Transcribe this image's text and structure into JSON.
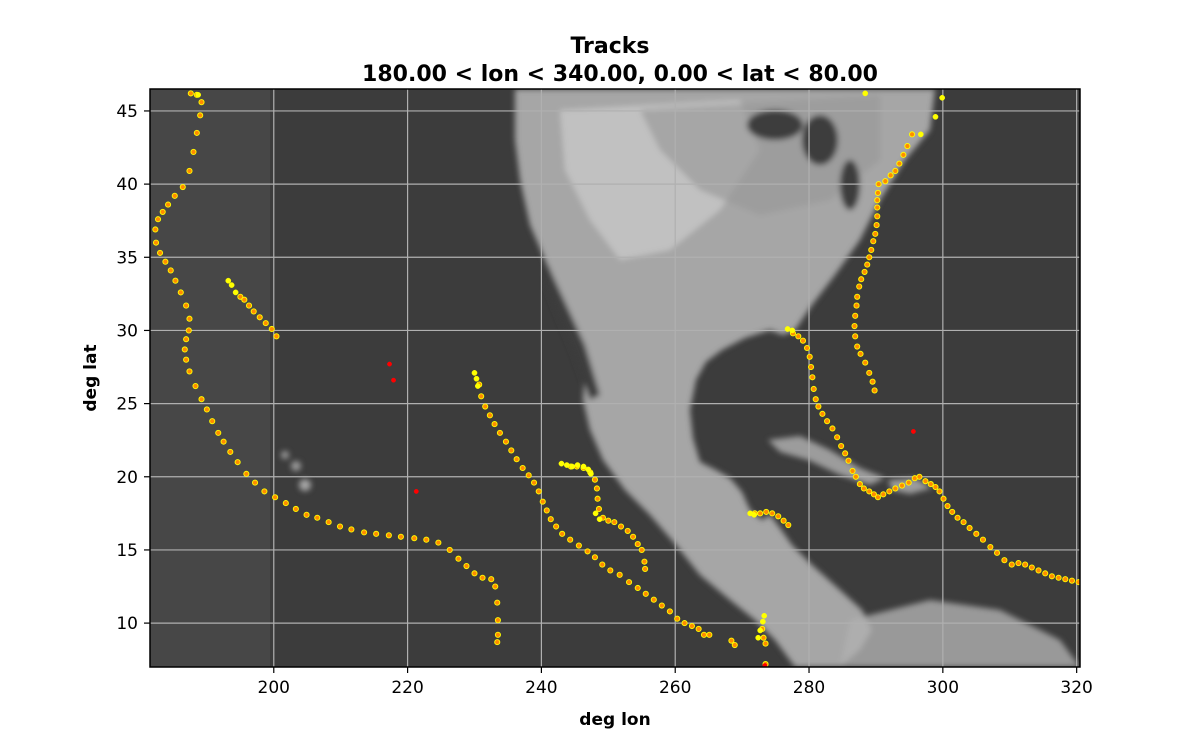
{
  "chart_data": {
    "type": "scatter",
    "title": "Tracks",
    "subtitle": "180.00 < lon < 340.00, 0.00 < lat < 80.00",
    "xlabel": "deg lon",
    "ylabel": "deg lat",
    "xlim": [
      181.5,
      320.5
    ],
    "ylim": [
      7.0,
      46.5
    ],
    "xticks": [
      200,
      220,
      240,
      260,
      280,
      300,
      320
    ],
    "yticks": [
      10,
      15,
      20,
      25,
      30,
      35,
      40,
      45
    ],
    "grid": true,
    "background": "grayscale satellite imagery of North America, Central America and the Caribbean",
    "colors": {
      "point_fill": "#ff8c00",
      "point_edge": "#ffff00",
      "red_point": "#ff0000",
      "yellow_point": "#ffff00",
      "plot_bg": "#3c3c3c",
      "grid": "#b0b0b0"
    },
    "series": [
      {
        "color": "orange",
        "points": [
          [
            187.6,
            46.2
          ],
          [
            188.5,
            46.1
          ],
          [
            189.2,
            45.6
          ],
          [
            189.0,
            44.7
          ],
          [
            188.5,
            43.5
          ],
          [
            188.0,
            42.2
          ],
          [
            187.4,
            40.9
          ],
          [
            186.4,
            39.8
          ],
          [
            185.2,
            39.2
          ],
          [
            184.2,
            38.6
          ],
          [
            183.4,
            38.1
          ],
          [
            182.7,
            37.6
          ],
          [
            182.3,
            36.9
          ],
          [
            182.4,
            36.0
          ],
          [
            183.0,
            35.3
          ],
          [
            183.8,
            34.7
          ],
          [
            184.6,
            34.1
          ],
          [
            185.3,
            33.4
          ],
          [
            186.1,
            32.6
          ],
          [
            186.9,
            31.7
          ],
          [
            187.4,
            30.8
          ],
          [
            187.3,
            30.0
          ],
          [
            186.9,
            29.4
          ],
          [
            186.7,
            28.7
          ],
          [
            186.9,
            28.0
          ],
          [
            187.4,
            27.2
          ],
          [
            188.3,
            26.2
          ],
          [
            189.2,
            25.3
          ],
          [
            190.0,
            24.6
          ],
          [
            190.8,
            23.8
          ],
          [
            191.7,
            23.0
          ],
          [
            192.5,
            22.4
          ],
          [
            193.5,
            21.7
          ],
          [
            194.6,
            21.0
          ],
          [
            195.9,
            20.2
          ],
          [
            197.2,
            19.6
          ],
          [
            198.6,
            19.0
          ],
          [
            200.2,
            18.6
          ],
          [
            201.8,
            18.2
          ],
          [
            203.3,
            17.8
          ],
          [
            204.9,
            17.4
          ],
          [
            206.5,
            17.2
          ],
          [
            208.2,
            16.9
          ],
          [
            209.9,
            16.6
          ],
          [
            211.6,
            16.4
          ],
          [
            213.5,
            16.2
          ],
          [
            215.3,
            16.1
          ],
          [
            217.2,
            16.0
          ],
          [
            219.0,
            15.9
          ],
          [
            221.0,
            15.8
          ],
          [
            222.8,
            15.7
          ],
          [
            224.6,
            15.5
          ],
          [
            226.3,
            15.0
          ],
          [
            227.6,
            14.4
          ],
          [
            228.8,
            13.9
          ],
          [
            230.0,
            13.4
          ],
          [
            231.2,
            13.1
          ],
          [
            232.5,
            13.0
          ],
          [
            233.1,
            12.5
          ],
          [
            233.4,
            11.4
          ],
          [
            233.5,
            10.2
          ],
          [
            233.5,
            9.2
          ],
          [
            233.4,
            8.7
          ]
        ]
      },
      {
        "color": "orange",
        "points": [
          [
            195.0,
            32.3
          ],
          [
            195.6,
            32.1
          ],
          [
            196.3,
            31.7
          ],
          [
            197.0,
            31.3
          ],
          [
            197.9,
            30.9
          ],
          [
            198.8,
            30.5
          ],
          [
            199.7,
            30.1
          ],
          [
            200.4,
            29.6
          ]
        ]
      },
      {
        "color": "orange",
        "points": [
          [
            230.7,
            26.3
          ],
          [
            231.0,
            25.5
          ],
          [
            231.6,
            24.8
          ],
          [
            232.3,
            24.2
          ],
          [
            233.0,
            23.6
          ],
          [
            233.8,
            23.0
          ],
          [
            234.7,
            22.4
          ],
          [
            235.5,
            21.8
          ],
          [
            236.3,
            21.2
          ],
          [
            237.2,
            20.6
          ],
          [
            238.1,
            20.1
          ],
          [
            238.9,
            19.6
          ],
          [
            239.6,
            19.0
          ],
          [
            240.2,
            18.3
          ],
          [
            240.8,
            17.7
          ],
          [
            241.4,
            17.1
          ],
          [
            242.2,
            16.6
          ],
          [
            243.1,
            16.1
          ],
          [
            244.3,
            15.7
          ],
          [
            245.6,
            15.3
          ],
          [
            246.9,
            14.9
          ],
          [
            248.0,
            14.5
          ],
          [
            249.1,
            14.0
          ],
          [
            250.3,
            13.6
          ],
          [
            251.7,
            13.3
          ],
          [
            253.1,
            12.8
          ],
          [
            254.4,
            12.4
          ],
          [
            255.6,
            12.0
          ],
          [
            256.8,
            11.6
          ],
          [
            258.0,
            11.2
          ],
          [
            259.2,
            10.8
          ],
          [
            260.3,
            10.3
          ],
          [
            261.4,
            10.0
          ],
          [
            262.5,
            9.8
          ],
          [
            263.5,
            9.6
          ],
          [
            264.3,
            9.2
          ],
          [
            265.1,
            9.2
          ],
          [
            268.4,
            8.8
          ],
          [
            268.9,
            8.5
          ]
        ]
      },
      {
        "color": "orange",
        "points": [
          [
            244.4,
            20.7
          ],
          [
            245.3,
            20.7
          ],
          [
            246.3,
            20.6
          ],
          [
            247.3,
            20.3
          ],
          [
            248.0,
            19.8
          ],
          [
            248.3,
            19.2
          ],
          [
            248.4,
            18.5
          ],
          [
            248.6,
            17.8
          ],
          [
            249.2,
            17.2
          ],
          [
            250.0,
            17.0
          ],
          [
            250.9,
            16.9
          ],
          [
            251.9,
            16.6
          ],
          [
            252.9,
            16.3
          ],
          [
            253.7,
            15.9
          ],
          [
            254.4,
            15.4
          ],
          [
            255.0,
            15.0
          ],
          [
            255.4,
            14.2
          ],
          [
            255.5,
            13.7
          ]
        ]
      },
      {
        "color": "orange",
        "points": [
          [
            271.9,
            17.5
          ],
          [
            272.7,
            17.5
          ],
          [
            273.6,
            17.6
          ],
          [
            274.5,
            17.5
          ],
          [
            275.4,
            17.3
          ],
          [
            276.2,
            17.0
          ],
          [
            276.9,
            16.7
          ]
        ]
      },
      {
        "color": "orange",
        "points": [
          [
            277.6,
            29.8
          ],
          [
            278.4,
            29.6
          ],
          [
            279.1,
            29.3
          ],
          [
            279.7,
            28.8
          ],
          [
            280.1,
            28.2
          ],
          [
            280.3,
            27.5
          ],
          [
            280.5,
            26.8
          ],
          [
            280.7,
            26.0
          ],
          [
            281.0,
            25.3
          ],
          [
            281.4,
            24.8
          ],
          [
            282.0,
            24.3
          ],
          [
            282.7,
            23.8
          ],
          [
            283.5,
            23.3
          ],
          [
            284.2,
            22.7
          ],
          [
            284.8,
            22.1
          ],
          [
            285.4,
            21.6
          ],
          [
            285.9,
            21.1
          ],
          [
            286.5,
            20.4
          ],
          [
            287.0,
            20.0
          ],
          [
            287.6,
            19.5
          ],
          [
            288.2,
            19.2
          ],
          [
            289.0,
            19.0
          ],
          [
            289.7,
            18.8
          ],
          [
            290.3,
            18.6
          ],
          [
            291.1,
            18.8
          ],
          [
            292.0,
            19.0
          ],
          [
            292.9,
            19.2
          ],
          [
            293.9,
            19.4
          ],
          [
            294.9,
            19.6
          ],
          [
            295.8,
            19.9
          ],
          [
            296.5,
            20.0
          ],
          [
            297.4,
            19.7
          ],
          [
            298.2,
            19.5
          ],
          [
            298.9,
            19.3
          ],
          [
            299.5,
            19.0
          ],
          [
            300.1,
            18.5
          ],
          [
            300.7,
            18.0
          ],
          [
            301.4,
            17.6
          ],
          [
            302.2,
            17.2
          ],
          [
            303.1,
            16.9
          ],
          [
            304.0,
            16.5
          ],
          [
            305.0,
            16.1
          ],
          [
            306.0,
            15.7
          ],
          [
            307.1,
            15.2
          ],
          [
            308.1,
            14.8
          ],
          [
            309.2,
            14.3
          ],
          [
            310.3,
            14.0
          ],
          [
            311.3,
            14.1
          ],
          [
            312.3,
            14.0
          ],
          [
            313.3,
            13.8
          ],
          [
            314.3,
            13.6
          ],
          [
            315.3,
            13.4
          ],
          [
            316.3,
            13.2
          ],
          [
            317.3,
            13.1
          ],
          [
            318.3,
            13.0
          ],
          [
            319.3,
            12.9
          ],
          [
            320.3,
            12.8
          ]
        ]
      },
      {
        "color": "orange",
        "points": [
          [
            289.8,
            25.9
          ],
          [
            289.5,
            26.5
          ],
          [
            289.0,
            27.1
          ],
          [
            288.4,
            27.8
          ],
          [
            287.7,
            28.4
          ],
          [
            287.2,
            28.9
          ],
          [
            286.9,
            29.6
          ],
          [
            286.8,
            30.3
          ],
          [
            286.9,
            31.0
          ],
          [
            287.1,
            31.7
          ],
          [
            287.2,
            32.3
          ],
          [
            287.5,
            33.0
          ],
          [
            287.8,
            33.5
          ],
          [
            288.3,
            34.0
          ],
          [
            288.7,
            34.5
          ],
          [
            289.0,
            35.0
          ],
          [
            289.3,
            35.5
          ],
          [
            289.6,
            36.1
          ],
          [
            289.9,
            36.6
          ],
          [
            290.1,
            37.2
          ],
          [
            290.2,
            37.8
          ],
          [
            290.2,
            38.4
          ],
          [
            290.2,
            38.9
          ],
          [
            290.3,
            39.4
          ],
          [
            290.4,
            40.0
          ],
          [
            291.4,
            40.2
          ],
          [
            292.2,
            40.6
          ],
          [
            292.9,
            40.9
          ],
          [
            293.5,
            41.4
          ],
          [
            294.1,
            42.0
          ],
          [
            294.7,
            42.6
          ],
          [
            295.4,
            43.4
          ]
        ]
      },
      {
        "color": "orange",
        "points": [
          [
            273.0,
            9.6
          ],
          [
            273.2,
            9.0
          ],
          [
            273.5,
            8.6
          ],
          [
            273.5,
            7.2
          ]
        ]
      },
      {
        "color": "yellow",
        "points": [
          [
            193.2,
            33.4
          ],
          [
            193.7,
            33.1
          ],
          [
            194.3,
            32.6
          ],
          [
            230.0,
            27.1
          ],
          [
            230.3,
            26.7
          ],
          [
            230.5,
            26.2
          ],
          [
            243.0,
            20.9
          ],
          [
            243.8,
            20.8
          ],
          [
            244.6,
            20.7
          ],
          [
            245.4,
            20.8
          ],
          [
            246.3,
            20.7
          ],
          [
            247.0,
            20.5
          ],
          [
            247.4,
            20.2
          ],
          [
            248.1,
            17.5
          ],
          [
            248.7,
            17.1
          ],
          [
            271.2,
            17.5
          ],
          [
            271.8,
            17.4
          ],
          [
            276.8,
            30.1
          ],
          [
            277.5,
            30.0
          ],
          [
            272.4,
            9.0
          ],
          [
            272.7,
            9.5
          ],
          [
            273.1,
            10.1
          ],
          [
            273.3,
            10.5
          ],
          [
            296.7,
            43.4
          ],
          [
            298.9,
            44.6
          ],
          [
            299.9,
            45.9
          ],
          [
            288.4,
            46.2
          ],
          [
            188.7,
            46.1
          ]
        ]
      },
      {
        "color": "red",
        "points": [
          [
            217.3,
            27.7
          ],
          [
            217.9,
            26.6
          ],
          [
            221.3,
            19.0
          ],
          [
            295.6,
            23.1
          ],
          [
            273.4,
            7.1
          ]
        ]
      }
    ]
  }
}
